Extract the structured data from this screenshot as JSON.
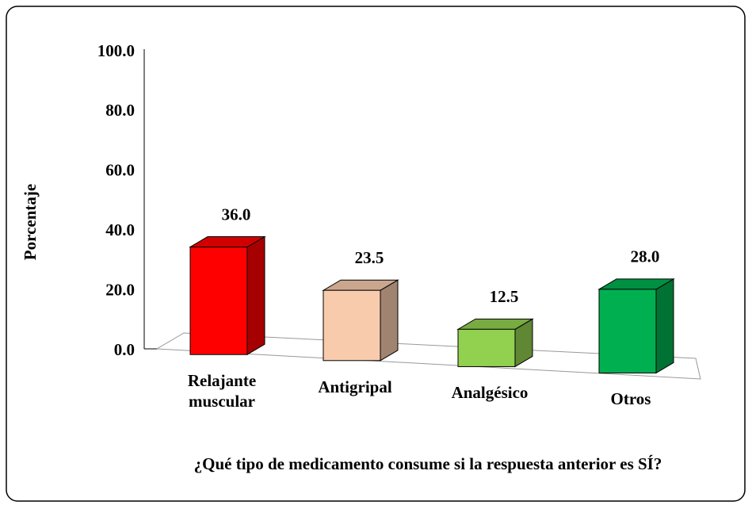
{
  "chart_data": {
    "type": "bar3d",
    "title": "¿Qué tipo de medicamento consume si la respuesta anterior es SÍ?",
    "ylabel": "Porcentaje",
    "categories": [
      "Relajante muscular",
      "Antigripal",
      "Analgésico",
      "Otros"
    ],
    "values": [
      36.0,
      23.5,
      12.5,
      28.0
    ],
    "value_labels": [
      "36.0",
      "23.5",
      "12.5",
      "28.0"
    ],
    "colors": [
      "#ff0000",
      "#f8cbad",
      "#92d050",
      "#00b050"
    ],
    "ylim": [
      0,
      100
    ],
    "yticks": [
      {
        "value": 0,
        "label": "0.0"
      },
      {
        "value": 20,
        "label": "20.0"
      },
      {
        "value": 40,
        "label": "40.0"
      },
      {
        "value": 60,
        "label": "60.0"
      },
      {
        "value": 80,
        "label": "80.0"
      },
      {
        "value": 100,
        "label": "100.0"
      }
    ],
    "grid": false
  }
}
